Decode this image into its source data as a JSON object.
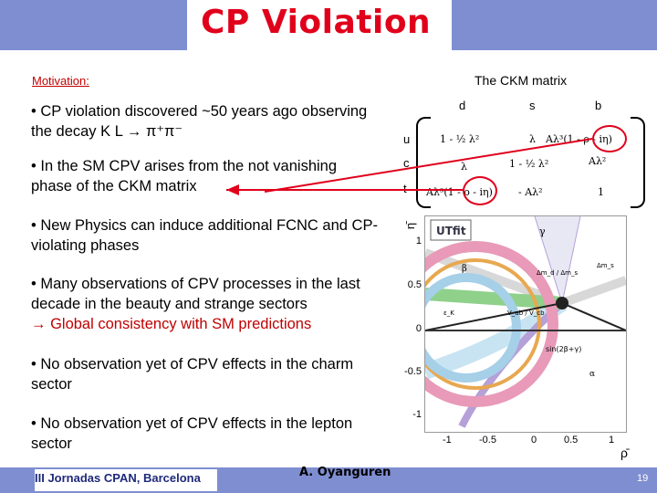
{
  "title": "CP Violation",
  "motivation": "Motivation:",
  "ckm": {
    "title": "The CKM matrix",
    "cols": [
      "d",
      "s",
      "b"
    ],
    "rows": [
      "u",
      "c",
      "t"
    ],
    "cells": [
      [
        "1 - ½ λ²",
        "λ",
        "Aλ³(1 - ρ - iη)"
      ],
      [
        "λ",
        "1 - ½ λ²",
        "Aλ²"
      ],
      [
        "Aλ³(1 - ρ - iη)",
        "- Aλ²",
        "1"
      ]
    ]
  },
  "bullets": [
    {
      "text": "• CP violation discovered ~50 years ago observing the decay K L → π⁺π⁻"
    },
    {
      "text": "• In the SM CPV arises from the not vanishing phase of the CKM matrix"
    },
    {
      "text": "• New Physics can induce additional FCNC and CP-violating phases"
    },
    {
      "text": "• Many observations of CPV processes in the last decade in the beauty and strange sectors",
      "highlight": "→ Global consistency with SM predictions"
    },
    {
      "text": "• No observation yet of CPV effects in the charm sector"
    },
    {
      "text": "• No observation yet of CPV effects in the lepton sector"
    }
  ],
  "plot": {
    "logo": "UTfit",
    "yticks": [
      "1",
      "0.5",
      "0",
      "-0.5",
      "-1"
    ],
    "xticks": [
      "-1",
      "-0.5",
      "0",
      "0.5",
      "1"
    ],
    "xaxis": "ρ̄",
    "yaxis": "η̄",
    "labels": {
      "gamma": "γ",
      "beta": "β",
      "dmd": "Δm_d / Δm_s",
      "dms": "Δm_s",
      "vub": "V_ub / V_cb",
      "eps": "ε_K",
      "sin": "sin(2β+γ)",
      "alpha": "α"
    }
  },
  "footer": {
    "left": "III Jornadas CPAN, Barcelona",
    "author": "A. Oyanguren",
    "page": "19"
  },
  "colors": {
    "title": "#e0001b",
    "band": "#7f8ed1",
    "highlight": "#c00000"
  }
}
